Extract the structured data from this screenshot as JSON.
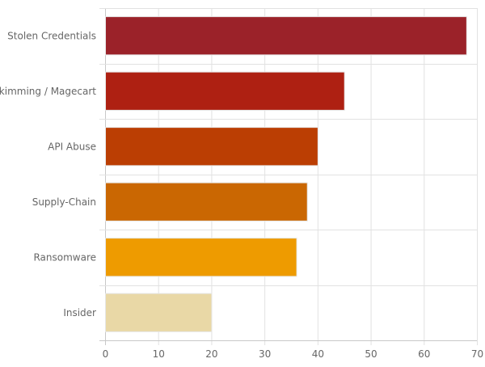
{
  "chart_data": {
    "type": "bar",
    "orientation": "horizontal",
    "title": "",
    "xlabel": "",
    "ylabel": "",
    "categories": [
      "Stolen Credentials",
      "Skimming / Magecart",
      "API Abuse",
      "Supply-Chain",
      "Ransomware",
      "Insider"
    ],
    "values": [
      68,
      45,
      40,
      38,
      36,
      20
    ],
    "colors": [
      "#9b2229",
      "#ae2012",
      "#bb3e03",
      "#ca6702",
      "#ee9b00",
      "#e9d8a6"
    ],
    "xlim": [
      0,
      70
    ],
    "xticks": [
      "0",
      "10",
      "20",
      "30",
      "40",
      "50",
      "60",
      "70"
    ],
    "grid": true,
    "legend": "none"
  }
}
